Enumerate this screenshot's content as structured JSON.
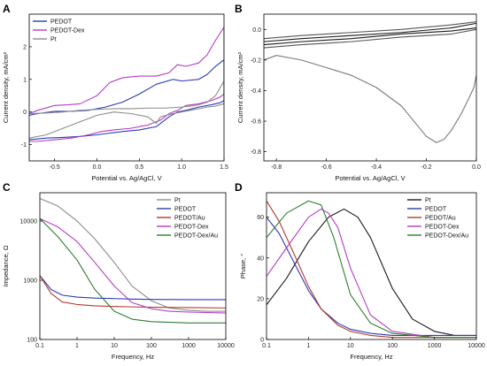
{
  "chart_data": [
    {
      "panel": "A",
      "type": "line",
      "xlabel": "Potential vs. Ag/AgCl, V",
      "ylabel": "Current density, mA/cm²",
      "xlim": [
        -0.8,
        1.5
      ],
      "ylim": [
        -1.5,
        3.0
      ],
      "xticks": [
        -0.5,
        0.0,
        0.5,
        1.0,
        1.5
      ],
      "xtick_labels": [
        "-0.5",
        "0.0",
        "0.5",
        "1.0",
        "1.5"
      ],
      "yticks": [
        -1,
        0,
        1,
        2
      ],
      "ytick_labels": [
        "-1",
        "0",
        "1",
        "2"
      ],
      "legend_position": "top-left",
      "series": [
        {
          "name": "PEDOT",
          "color": "#2b3bb0",
          "x": [
            -0.8,
            -0.7,
            -0.5,
            -0.3,
            -0.1,
            0.1,
            0.3,
            0.5,
            0.7,
            0.9,
            1.0,
            1.2,
            1.3,
            1.4,
            1.5,
            1.5,
            1.45,
            1.35,
            1.2,
            1.05,
            0.95,
            0.85,
            0.7,
            0.5,
            0.3,
            0.15,
            0.0,
            -0.2,
            -0.4,
            -0.6,
            -0.8
          ],
          "y": [
            -0.1,
            -0.05,
            0.02,
            0.02,
            0.05,
            0.15,
            0.3,
            0.55,
            0.85,
            1.0,
            0.95,
            1.0,
            1.15,
            1.4,
            1.6,
            0.35,
            0.28,
            0.22,
            0.15,
            0.05,
            0.0,
            -0.15,
            -0.45,
            -0.55,
            -0.6,
            -0.65,
            -0.7,
            -0.75,
            -0.78,
            -0.8,
            -0.85
          ]
        },
        {
          "name": "PEDOT-Dex",
          "color": "#b43cc4",
          "x": [
            -0.8,
            -0.7,
            -0.5,
            -0.35,
            -0.2,
            0.0,
            0.15,
            0.3,
            0.5,
            0.7,
            0.85,
            0.95,
            1.05,
            1.2,
            1.3,
            1.4,
            1.5,
            1.5,
            1.45,
            1.35,
            1.2,
            1.05,
            0.95,
            0.85,
            0.75,
            0.6,
            0.4,
            0.2,
            0.05,
            -0.1,
            -0.3,
            -0.5,
            -0.7,
            -0.8
          ],
          "y": [
            -0.05,
            0.05,
            0.2,
            0.22,
            0.25,
            0.5,
            0.9,
            1.05,
            1.1,
            1.1,
            1.2,
            1.45,
            1.4,
            1.5,
            1.75,
            2.2,
            2.6,
            0.55,
            0.45,
            0.35,
            0.25,
            0.2,
            0.05,
            -0.05,
            -0.25,
            -0.4,
            -0.5,
            -0.55,
            -0.6,
            -0.7,
            -0.8,
            -0.85,
            -0.9,
            -0.9
          ]
        },
        {
          "name": "Pt",
          "color": "#8c8c8c",
          "x": [
            -0.8,
            -0.6,
            -0.4,
            -0.2,
            0.0,
            0.2,
            0.4,
            0.6,
            0.8,
            1.0,
            1.1,
            1.2,
            1.3,
            1.4,
            1.5,
            1.5,
            1.4,
            1.3,
            1.1,
            0.9,
            0.75,
            0.7,
            0.6,
            0.4,
            0.2,
            0.0,
            -0.2,
            -0.4,
            -0.6,
            -0.8
          ],
          "y": [
            -0.05,
            -0.03,
            0.0,
            0.05,
            0.08,
            0.1,
            0.1,
            0.12,
            0.12,
            0.15,
            0.18,
            0.22,
            0.3,
            0.5,
            0.95,
            0.25,
            0.18,
            0.15,
            0.05,
            -0.05,
            -0.15,
            -0.35,
            -0.15,
            -0.05,
            0.0,
            -0.1,
            -0.3,
            -0.5,
            -0.7,
            -0.8
          ]
        }
      ]
    },
    {
      "panel": "B",
      "type": "line",
      "xlabel": "Potential vs. Ag/AgCl, V",
      "ylabel": "Current density, mA/cm²",
      "xlim": [
        -0.85,
        0.0
      ],
      "ylim": [
        -0.86,
        0.1
      ],
      "xticks": [
        -0.8,
        -0.6,
        -0.4,
        -0.2,
        0.0
      ],
      "xtick_labels": [
        "-0.8",
        "-0.6",
        "-0.4",
        "-0.2",
        "0.0"
      ],
      "yticks": [
        0.0,
        -0.2,
        -0.4,
        -0.6,
        -0.8
      ],
      "ytick_labels": [
        "0.0",
        "-0.2",
        "-0.4",
        "-0.6",
        "-0.8"
      ],
      "series": [
        {
          "name": "",
          "color": "#1a1a1a",
          "x": [
            -0.85,
            -0.7,
            -0.5,
            -0.3,
            -0.1,
            0.0
          ],
          "y": [
            -0.08,
            -0.06,
            -0.04,
            -0.02,
            0.01,
            0.04
          ]
        },
        {
          "name": "",
          "color": "#1a1a1a",
          "x": [
            -0.85,
            -0.7,
            -0.5,
            -0.3,
            -0.1,
            0.0
          ],
          "y": [
            -0.1,
            -0.08,
            -0.06,
            -0.03,
            -0.01,
            0.01
          ]
        },
        {
          "name": "",
          "color": "#555555",
          "x": [
            -0.85,
            -0.7,
            -0.5,
            -0.3,
            -0.1,
            0.0
          ],
          "y": [
            -0.06,
            -0.04,
            -0.02,
            0.0,
            0.03,
            0.05
          ]
        },
        {
          "name": "",
          "color": "#555555",
          "x": [
            -0.85,
            -0.7,
            -0.5,
            -0.3,
            -0.1,
            0.0
          ],
          "y": [
            -0.12,
            -0.1,
            -0.08,
            -0.05,
            -0.03,
            0.0
          ]
        },
        {
          "name": "",
          "color": "#7a7a7a",
          "x": [
            -0.85,
            -0.8,
            -0.7,
            -0.6,
            -0.5,
            -0.4,
            -0.3,
            -0.25,
            -0.2,
            -0.16,
            -0.13,
            -0.1,
            -0.06,
            -0.03,
            -0.01,
            0.0
          ],
          "y": [
            -0.2,
            -0.17,
            -0.2,
            -0.25,
            -0.3,
            -0.38,
            -0.5,
            -0.6,
            -0.7,
            -0.74,
            -0.72,
            -0.66,
            -0.55,
            -0.45,
            -0.38,
            -0.3
          ]
        }
      ]
    },
    {
      "panel": "C",
      "type": "line",
      "xlabel": "Frequency, Hz",
      "ylabel": "Impedance, Ω",
      "xscale": "log",
      "yscale": "log",
      "xlim": [
        0.1,
        10000
      ],
      "ylim": [
        100,
        30000
      ],
      "xticks": [
        0.1,
        1,
        10,
        100,
        1000,
        10000
      ],
      "xtick_labels": [
        "0.1",
        "1",
        "10",
        "100",
        "1000",
        "10000"
      ],
      "yticks": [
        100,
        1000,
        10000
      ],
      "ytick_labels": [
        "100",
        "1000",
        "10000"
      ],
      "legend_position": "top-right",
      "series": [
        {
          "name": "Pt",
          "color": "#8c8c8c",
          "x": [
            0.1,
            0.3,
            1,
            3,
            10,
            30,
            100,
            300,
            1000,
            3000,
            10000
          ],
          "y": [
            24000,
            18000,
            10000,
            5000,
            2000,
            800,
            450,
            340,
            310,
            300,
            300
          ]
        },
        {
          "name": "PEDOT",
          "color": "#2b3bb0",
          "x": [
            0.1,
            0.2,
            0.4,
            1,
            3,
            10,
            30,
            100,
            1000,
            10000
          ],
          "y": [
            1200,
            700,
            560,
            520,
            500,
            490,
            480,
            475,
            470,
            470
          ]
        },
        {
          "name": "PEDOT/Au",
          "color": "#b03a2e",
          "x": [
            0.1,
            0.2,
            0.4,
            1,
            3,
            10,
            30,
            100,
            1000,
            10000
          ],
          "y": [
            1200,
            600,
            430,
            390,
            370,
            360,
            355,
            350,
            345,
            340
          ]
        },
        {
          "name": "PEDOT-Dex",
          "color": "#b43cc4",
          "x": [
            0.1,
            0.3,
            1,
            3,
            10,
            30,
            100,
            300,
            1000,
            10000
          ],
          "y": [
            11000,
            8000,
            4500,
            2000,
            800,
            420,
            330,
            300,
            290,
            280
          ]
        },
        {
          "name": "PEDOT-Dex/Au",
          "color": "#2e7d32",
          "x": [
            0.1,
            0.3,
            1,
            3,
            10,
            30,
            100,
            1000,
            10000
          ],
          "y": [
            11000,
            5500,
            2200,
            700,
            300,
            220,
            200,
            190,
            190
          ]
        }
      ]
    },
    {
      "panel": "D",
      "type": "line",
      "xlabel": "Frequency, Hz",
      "ylabel": "Phase, °",
      "xscale": "log",
      "xlim": [
        0.1,
        10000
      ],
      "ylim": [
        0,
        72
      ],
      "xticks": [
        0.1,
        1,
        10,
        100,
        1000,
        10000
      ],
      "xtick_labels": [
        "0.1",
        "1",
        "10",
        "100",
        "1000",
        "10000"
      ],
      "yticks": [
        0,
        20,
        40,
        60
      ],
      "ytick_labels": [
        "0",
        "20",
        "40",
        "60"
      ],
      "legend_position": "top-right",
      "series": [
        {
          "name": "Pt",
          "color": "#1a1a1a",
          "x": [
            0.1,
            0.3,
            1,
            3,
            7,
            15,
            30,
            100,
            300,
            1000,
            3000,
            10000
          ],
          "y": [
            17,
            30,
            48,
            60,
            64,
            60,
            50,
            25,
            10,
            4,
            2,
            2
          ]
        },
        {
          "name": "PEDOT",
          "color": "#2b3bb0",
          "x": [
            0.1,
            0.2,
            0.5,
            1,
            2,
            5,
            10,
            30,
            100,
            1000,
            10000
          ],
          "y": [
            60,
            52,
            36,
            24,
            15,
            8,
            5,
            3,
            2,
            2,
            2
          ]
        },
        {
          "name": "PEDOT/Au",
          "color": "#b03a2e",
          "x": [
            0.1,
            0.2,
            0.5,
            1,
            2,
            5,
            10,
            30,
            100,
            1000,
            10000
          ],
          "y": [
            68,
            58,
            40,
            26,
            15,
            7,
            4,
            2,
            1,
            1,
            1
          ]
        },
        {
          "name": "PEDOT-Dex",
          "color": "#b43cc4",
          "x": [
            0.1,
            0.3,
            1,
            2,
            3,
            5,
            10,
            30,
            100,
            1000,
            10000
          ],
          "y": [
            31,
            45,
            60,
            64,
            62,
            55,
            35,
            12,
            4,
            1,
            1
          ]
        },
        {
          "name": "PEDOT-Dex/Au",
          "color": "#2e7d32",
          "x": [
            0.1,
            0.3,
            1,
            2,
            4,
            10,
            30,
            100,
            1000,
            10000
          ],
          "y": [
            50,
            62,
            68,
            66,
            50,
            22,
            8,
            3,
            1,
            1
          ]
        }
      ]
    }
  ]
}
